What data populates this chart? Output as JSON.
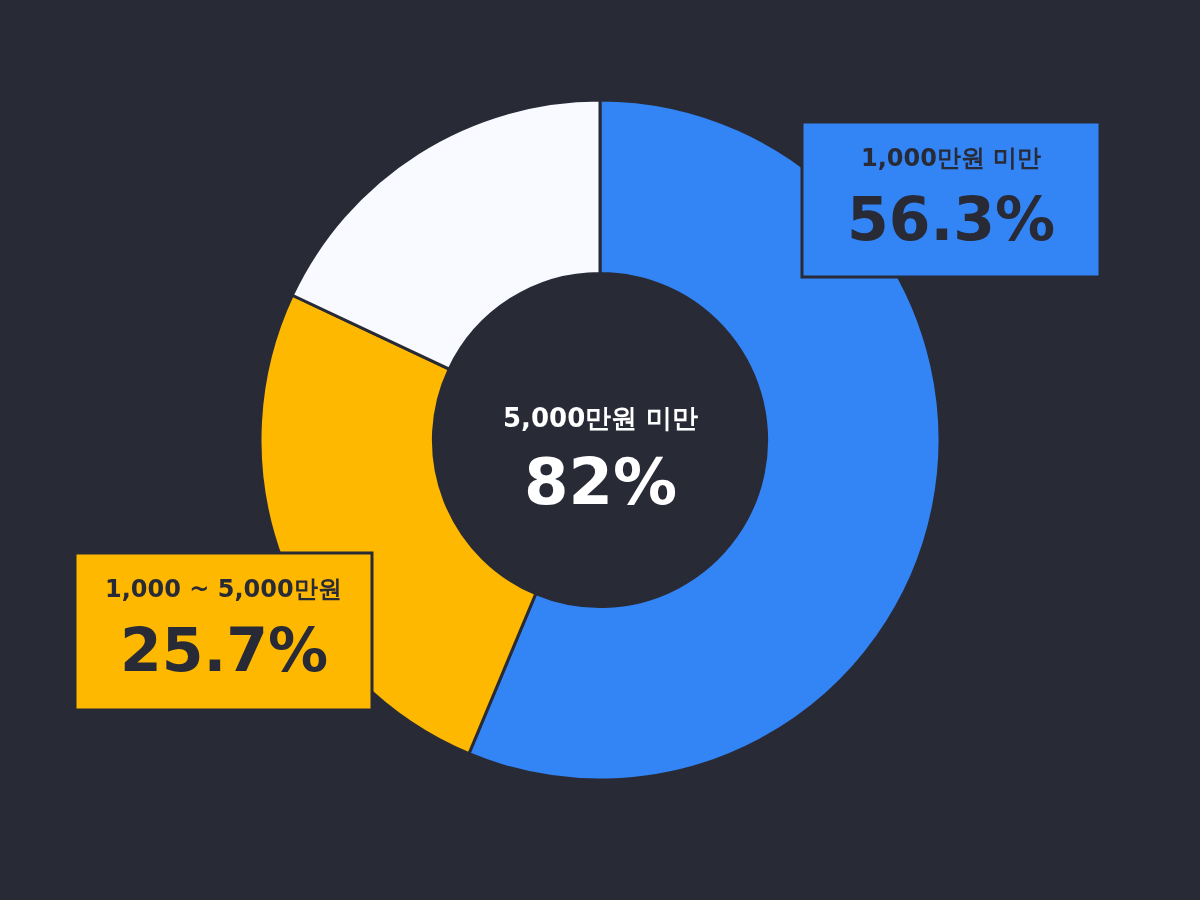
{
  "chart_data": {
    "type": "donut",
    "categories": [
      "1,000만원 미만",
      "1,000 ~ 5,000만원",
      null
    ],
    "values": [
      56.3,
      25.7,
      18.0
    ],
    "colors": [
      "#3384f5",
      "#ffb800",
      "#f8faff"
    ],
    "value_labels": [
      "56.3%",
      "25.7%",
      null
    ],
    "annotations": [
      "5,000만원 미만",
      "82%"
    ],
    "legend": false
  }
}
